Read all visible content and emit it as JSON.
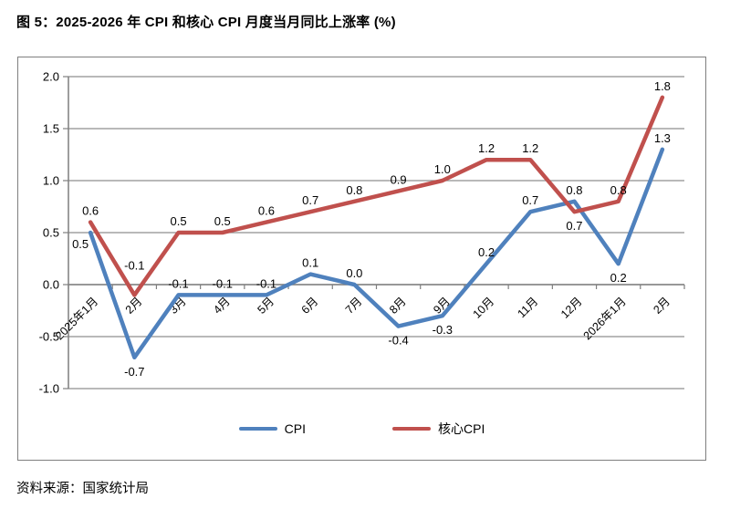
{
  "title": "图 5：2025-2026 年 CPI 和核心 CPI 月度当月同比上涨率 (%)",
  "source": "资料来源：国家统计局",
  "chart_data": {
    "type": "line",
    "title": "2025-2026 年 CPI 和核心 CPI 月度当月同比上涨率 (%)",
    "categories": [
      "2025年1月",
      "2月",
      "3月",
      "4月",
      "5月",
      "6月",
      "7月",
      "8月",
      "9月",
      "10月",
      "11月",
      "12月",
      "2026年1月",
      "2月"
    ],
    "series": [
      {
        "name": "CPI",
        "color": "#4F81BD",
        "values": [
          0.5,
          -0.7,
          -0.1,
          -0.1,
          -0.1,
          0.1,
          0.0,
          -0.4,
          -0.3,
          0.2,
          0.7,
          0.8,
          0.2,
          1.3
        ],
        "label_pos": [
          "lb",
          "b",
          "a",
          "a",
          "a",
          "a",
          "a",
          "b",
          "b",
          "a",
          "a",
          "a",
          "b",
          "a"
        ]
      },
      {
        "name": "核心CPI",
        "color": "#C0504D",
        "values": [
          0.6,
          -0.1,
          0.5,
          0.5,
          0.6,
          0.7,
          0.8,
          0.9,
          1.0,
          1.2,
          1.2,
          0.7,
          0.8,
          1.8
        ],
        "label_pos": [
          "a",
          "ah",
          "a",
          "a",
          "a",
          "a",
          "a",
          "a",
          "a",
          "a",
          "a",
          "b",
          "a",
          "a"
        ]
      }
    ],
    "xlabel": "",
    "ylabel": "",
    "ylim": [
      -1.0,
      2.0
    ],
    "ytick_step": 0.5,
    "yticks": [
      "2.0",
      "1.5",
      "1.0",
      "0.5",
      "0.0",
      "-0.5",
      "-1.0"
    ],
    "grid": true,
    "data_labels": true,
    "legend_position": "bottom",
    "axis_color": "#7F7F7F",
    "grid_color": "#8F8F8F",
    "label_color": "#000000"
  }
}
